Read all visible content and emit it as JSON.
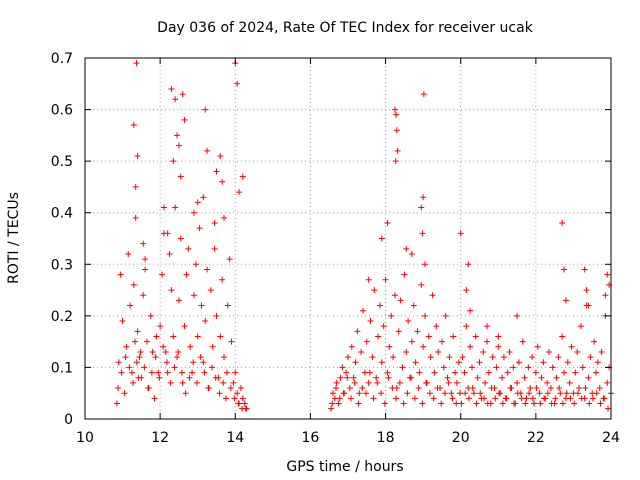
{
  "chart_data": {
    "type": "scatter",
    "title": "Day 036 of 2024, Rate Of TEC Index for receiver ucak",
    "xlabel": "GPS time / hours",
    "ylabel": "ROTI / TECUs",
    "xlim": [
      10,
      24
    ],
    "ylim": [
      0,
      0.7
    ],
    "x_ticks": [
      10,
      12,
      14,
      16,
      18,
      20,
      22,
      24
    ],
    "x_tick_labels": [
      "10",
      "12",
      "14",
      "16",
      "18",
      "20",
      "22",
      "24"
    ],
    "y_ticks": [
      0,
      0.1,
      0.2,
      0.3,
      0.4,
      0.5,
      0.6,
      0.7
    ],
    "y_tick_labels": [
      "0",
      "0.1",
      "0.2",
      "0.3",
      "0.4",
      "0.5",
      "0.6",
      "0.7"
    ],
    "grid": true,
    "marker": "plus",
    "color": "#ff0000",
    "series": [
      {
        "name": "ROTI",
        "x": [
          10.85,
          10.9,
          10.95,
          11.0,
          11.05,
          11.1,
          11.15,
          11.2,
          11.25,
          11.3,
          11.35,
          11.4,
          11.45,
          11.5,
          11.55,
          11.6,
          11.65,
          11.7,
          11.75,
          11.8,
          11.85,
          11.9,
          11.95,
          12.0,
          12.05,
          12.1,
          12.15,
          12.2,
          12.25,
          12.3,
          12.35,
          12.4,
          12.45,
          12.5,
          12.55,
          12.6,
          12.65,
          12.7,
          12.75,
          12.8,
          12.85,
          12.9,
          12.95,
          13.0,
          13.05,
          13.1,
          13.15,
          13.2,
          13.25,
          13.3,
          13.35,
          13.4,
          13.45,
          13.5,
          13.55,
          13.6,
          13.65,
          13.7,
          13.75,
          13.8,
          13.85,
          13.9,
          13.95,
          14.0,
          14.05,
          14.1,
          14.15,
          14.2,
          14.25,
          14.3,
          10.88,
          10.97,
          11.08,
          11.18,
          11.28,
          11.33,
          11.38,
          11.42,
          11.48,
          11.58,
          11.68,
          11.78,
          11.88,
          11.98,
          12.08,
          12.18,
          12.28,
          12.38,
          12.48,
          12.58,
          12.68,
          12.78,
          12.88,
          12.98,
          13.08,
          13.18,
          13.28,
          13.38,
          13.48,
          13.58,
          13.68,
          13.78,
          13.88,
          13.98,
          14.08,
          14.18,
          14.28,
          11.37,
          11.3,
          11.4,
          11.35,
          12.3,
          12.4,
          12.5,
          12.55,
          12.6,
          12.65,
          12.45,
          12.35,
          13.2,
          13.25,
          13.15,
          13.6,
          13.65,
          13.7,
          14.0,
          14.05,
          14.1,
          14.2,
          13.0,
          12.9,
          13.5,
          13.45,
          12.1,
          12.2,
          11.55,
          11.6,
          16.55,
          16.6,
          16.65,
          16.7,
          16.75,
          16.8,
          16.85,
          16.9,
          16.95,
          17.0,
          17.05,
          17.1,
          17.15,
          17.2,
          17.25,
          17.3,
          17.35,
          17.4,
          17.45,
          17.5,
          17.55,
          17.6,
          17.65,
          17.7,
          17.75,
          17.8,
          17.85,
          17.9,
          17.95,
          18.0,
          18.05,
          18.1,
          18.15,
          18.2,
          18.25,
          18.3,
          18.35,
          18.4,
          18.45,
          18.5,
          18.55,
          18.6,
          18.65,
          18.7,
          18.75,
          18.8,
          18.85,
          18.9,
          18.95,
          19.0,
          19.05,
          19.1,
          19.15,
          19.2,
          19.25,
          19.3,
          19.35,
          19.4,
          19.45,
          19.5,
          19.55,
          19.6,
          19.65,
          19.7,
          19.75,
          19.8,
          19.85,
          19.9,
          19.95,
          16.58,
          16.68,
          16.78,
          16.88,
          16.98,
          17.08,
          17.18,
          17.28,
          17.38,
          17.48,
          17.58,
          17.68,
          17.78,
          17.88,
          17.98,
          18.08,
          18.18,
          18.28,
          18.38,
          18.48,
          18.58,
          18.68,
          18.78,
          18.88,
          18.98,
          19.08,
          19.18,
          19.28,
          19.38,
          19.48,
          19.58,
          19.68,
          19.78,
          19.88,
          19.98,
          18.25,
          18.28,
          18.3,
          18.32,
          18.27,
          18.05,
          18.95,
          19.0,
          19.02,
          18.98,
          19.05,
          18.55,
          17.9,
          17.55,
          18.7,
          20.0,
          20.05,
          20.1,
          20.15,
          20.2,
          20.25,
          20.3,
          20.35,
          20.4,
          20.45,
          20.5,
          20.55,
          20.6,
          20.65,
          20.7,
          20.75,
          20.8,
          20.85,
          20.9,
          20.95,
          21.0,
          21.05,
          21.1,
          21.15,
          21.2,
          21.25,
          21.3,
          21.35,
          21.4,
          21.45,
          21.5,
          21.55,
          21.6,
          21.65,
          21.7,
          21.75,
          21.8,
          21.85,
          21.9,
          21.95,
          22.0,
          22.05,
          22.1,
          22.15,
          22.2,
          22.25,
          22.3,
          22.35,
          22.4,
          22.45,
          22.5,
          22.55,
          22.6,
          22.65,
          22.7,
          22.75,
          22.8,
          22.85,
          22.9,
          22.95,
          23.0,
          23.05,
          23.1,
          23.15,
          23.2,
          23.25,
          23.3,
          23.35,
          23.4,
          23.45,
          23.5,
          23.55,
          23.6,
          23.65,
          23.7,
          23.75,
          23.8,
          23.85,
          23.9,
          23.95,
          24.0,
          20.02,
          20.12,
          20.22,
          20.32,
          20.42,
          20.52,
          20.62,
          20.72,
          20.82,
          20.92,
          21.02,
          21.12,
          21.22,
          21.32,
          21.42,
          21.52,
          21.62,
          21.72,
          21.82,
          21.92,
          22.02,
          22.12,
          22.22,
          22.32,
          22.42,
          22.52,
          22.62,
          22.72,
          22.82,
          22.92,
          23.02,
          23.12,
          23.22,
          23.32,
          23.42,
          23.52,
          23.62,
          23.72,
          23.82,
          23.92,
          20.2,
          20.15,
          20.25,
          22.7,
          22.75,
          22.8,
          23.3,
          23.35,
          23.4,
          23.9,
          23.95,
          23.85,
          21.5,
          21.0,
          20.7
        ],
        "y": [
          0.03,
          0.11,
          0.28,
          0.19,
          0.05,
          0.14,
          0.32,
          0.22,
          0.09,
          0.26,
          0.39,
          0.17,
          0.12,
          0.08,
          0.24,
          0.31,
          0.15,
          0.06,
          0.2,
          0.13,
          0.04,
          0.16,
          0.09,
          0.18,
          0.28,
          0.36,
          0.13,
          0.09,
          0.32,
          0.25,
          0.16,
          0.41,
          0.12,
          0.23,
          0.35,
          0.07,
          0.18,
          0.28,
          0.33,
          0.14,
          0.09,
          0.24,
          0.3,
          0.16,
          0.37,
          0.22,
          0.11,
          0.19,
          0.29,
          0.06,
          0.25,
          0.14,
          0.33,
          0.2,
          0.08,
          0.16,
          0.27,
          0.12,
          0.04,
          0.22,
          0.31,
          0.15,
          0.07,
          0.09,
          0.05,
          0.03,
          0.06,
          0.04,
          0.03,
          0.02,
          0.06,
          0.09,
          0.12,
          0.1,
          0.07,
          0.15,
          0.11,
          0.08,
          0.13,
          0.1,
          0.06,
          0.09,
          0.12,
          0.08,
          0.14,
          0.11,
          0.07,
          0.1,
          0.13,
          0.09,
          0.05,
          0.08,
          0.11,
          0.07,
          0.12,
          0.09,
          0.06,
          0.1,
          0.08,
          0.05,
          0.07,
          0.09,
          0.06,
          0.04,
          0.03,
          0.02,
          0.02,
          0.69,
          0.57,
          0.51,
          0.45,
          0.64,
          0.62,
          0.53,
          0.47,
          0.63,
          0.58,
          0.55,
          0.5,
          0.6,
          0.52,
          0.43,
          0.51,
          0.46,
          0.39,
          0.69,
          0.65,
          0.44,
          0.47,
          0.42,
          0.4,
          0.48,
          0.38,
          0.41,
          0.36,
          0.34,
          0.29,
          0.02,
          0.05,
          0.04,
          0.07,
          0.03,
          0.08,
          0.1,
          0.05,
          0.09,
          0.12,
          0.06,
          0.14,
          0.08,
          0.11,
          0.17,
          0.05,
          0.13,
          0.21,
          0.09,
          0.15,
          0.07,
          0.19,
          0.12,
          0.25,
          0.08,
          0.16,
          0.22,
          0.11,
          0.18,
          0.27,
          0.09,
          0.14,
          0.2,
          0.12,
          0.24,
          0.06,
          0.17,
          0.23,
          0.1,
          0.28,
          0.13,
          0.19,
          0.08,
          0.15,
          0.22,
          0.11,
          0.17,
          0.09,
          0.26,
          0.14,
          0.2,
          0.07,
          0.16,
          0.12,
          0.24,
          0.09,
          0.18,
          0.13,
          0.06,
          0.15,
          0.1,
          0.2,
          0.08,
          0.12,
          0.05,
          0.16,
          0.09,
          0.07,
          0.11,
          0.03,
          0.06,
          0.04,
          0.05,
          0.08,
          0.04,
          0.07,
          0.03,
          0.06,
          0.05,
          0.09,
          0.04,
          0.07,
          0.05,
          0.03,
          0.08,
          0.06,
          0.04,
          0.07,
          0.03,
          0.05,
          0.08,
          0.04,
          0.06,
          0.03,
          0.07,
          0.05,
          0.04,
          0.06,
          0.03,
          0.05,
          0.07,
          0.04,
          0.03,
          0.05,
          0.6,
          0.59,
          0.56,
          0.52,
          0.5,
          0.38,
          0.41,
          0.43,
          0.63,
          0.36,
          0.3,
          0.33,
          0.35,
          0.27,
          0.32,
          0.36,
          0.12,
          0.09,
          0.18,
          0.06,
          0.14,
          0.1,
          0.05,
          0.16,
          0.08,
          0.11,
          0.04,
          0.13,
          0.07,
          0.15,
          0.09,
          0.03,
          0.12,
          0.06,
          0.1,
          0.14,
          0.05,
          0.08,
          0.12,
          0.04,
          0.09,
          0.13,
          0.06,
          0.1,
          0.03,
          0.07,
          0.11,
          0.05,
          0.15,
          0.08,
          0.04,
          0.1,
          0.06,
          0.12,
          0.03,
          0.09,
          0.14,
          0.05,
          0.08,
          0.11,
          0.04,
          0.07,
          0.13,
          0.06,
          0.1,
          0.03,
          0.08,
          0.12,
          0.05,
          0.16,
          0.09,
          0.04,
          0.11,
          0.07,
          0.14,
          0.05,
          0.09,
          0.13,
          0.06,
          0.18,
          0.1,
          0.04,
          0.22,
          0.08,
          0.12,
          0.05,
          0.15,
          0.09,
          0.11,
          0.06,
          0.13,
          0.04,
          0.2,
          0.07,
          0.1,
          0.05,
          0.03,
          0.05,
          0.04,
          0.06,
          0.03,
          0.05,
          0.04,
          0.03,
          0.06,
          0.04,
          0.05,
          0.03,
          0.04,
          0.06,
          0.03,
          0.05,
          0.04,
          0.03,
          0.05,
          0.04,
          0.06,
          0.03,
          0.04,
          0.05,
          0.03,
          0.04,
          0.06,
          0.03,
          0.05,
          0.04,
          0.03,
          0.05,
          0.04,
          0.06,
          0.03,
          0.04,
          0.05,
          0.03,
          0.04,
          0.02,
          0.3,
          0.25,
          0.21,
          0.38,
          0.29,
          0.23,
          0.29,
          0.25,
          0.22,
          0.28,
          0.26,
          0.24,
          0.2,
          0.16,
          0.18
        ]
      }
    ]
  }
}
